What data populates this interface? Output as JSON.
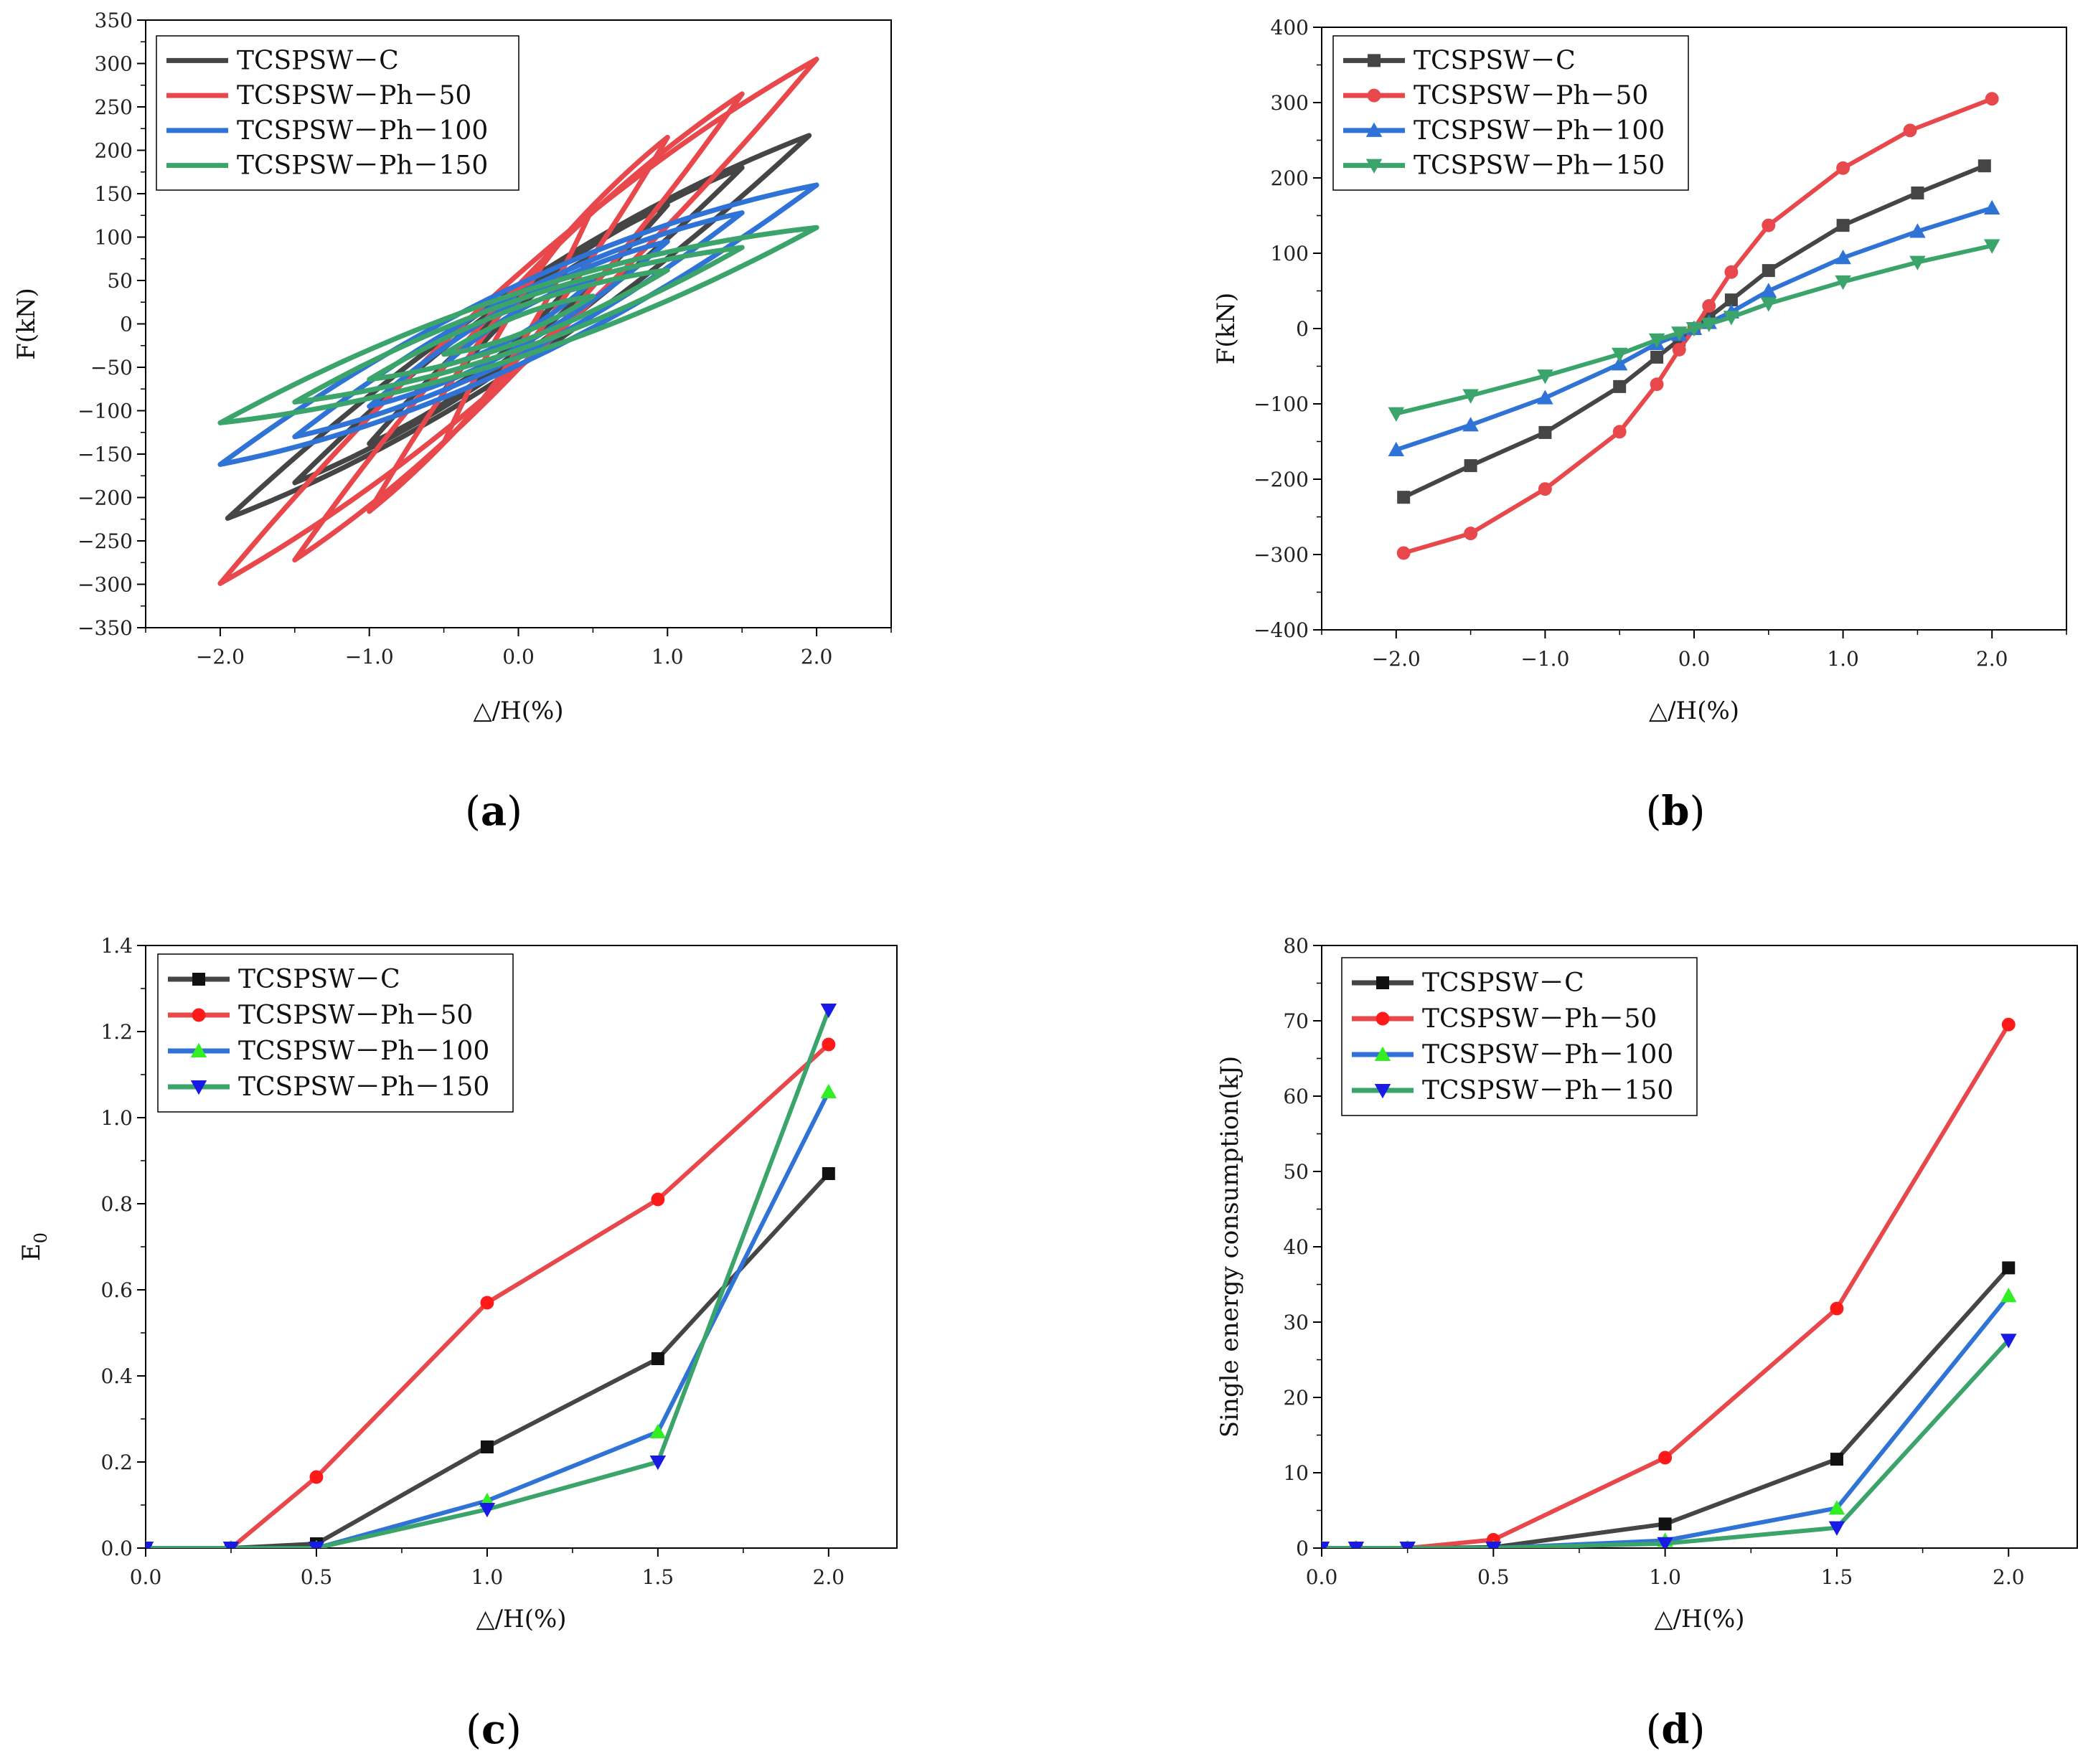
{
  "colors": {
    "C": "#454545",
    "Ph50": "#e8484b",
    "Ph100": "#2f73d6",
    "Ph150": "#3aa46a",
    "marker_green": "#33ee22",
    "marker_blue": "#1a1ae6",
    "marker_red": "#ff1a1a",
    "marker_black": "#111111"
  },
  "chart_data": [
    {
      "id": "a",
      "type": "line",
      "panel_label": "a",
      "xlabel": "△/H(%)",
      "ylabel": "F(kN)",
      "xlim": [
        -2.5,
        2.5
      ],
      "ylim": [
        -350,
        350
      ],
      "xticks": [
        -2.0,
        -1.0,
        0.0,
        1.0,
        2.0
      ],
      "xtick_labels": [
        "−2.0",
        "−1.0",
        "0.0",
        "1.0",
        "2.0"
      ],
      "yticks": [
        -350,
        -300,
        -250,
        -200,
        -150,
        -100,
        -50,
        0,
        50,
        100,
        150,
        200,
        250,
        300,
        350
      ],
      "ytick_labels": [
        "−350",
        "−300",
        "−250",
        "−200",
        "−150",
        "−100",
        "−50",
        "0",
        "50",
        "100",
        "150",
        "200",
        "250",
        "300",
        "350"
      ],
      "legend": "top-left",
      "series": [
        {
          "name": "TCSPSW－C",
          "color_key": "C",
          "marker": "none",
          "loops": [
            {
              "amp": 0.5,
              "fpos": 78,
              "fneg": -77,
              "pinch": 0.35
            },
            {
              "amp": 1.0,
              "fpos": 137,
              "fneg": -138,
              "pinch": 0.4
            },
            {
              "amp": 1.5,
              "fpos": 180,
              "fneg": -183,
              "pinch": 0.42
            },
            {
              "amp": 1.95,
              "fpos": 217,
              "fneg": -224,
              "pinch": 0.42
            }
          ]
        },
        {
          "name": "TCSPSW－Ph－50",
          "color_key": "Ph50",
          "marker": "none",
          "loops": [
            {
              "amp": 0.5,
              "fpos": 135,
              "fneg": -137,
              "pinch": 0.45
            },
            {
              "amp": 1.0,
              "fpos": 215,
              "fneg": -216,
              "pinch": 0.5
            },
            {
              "amp": 1.5,
              "fpos": 265,
              "fneg": -272,
              "pinch": 0.5
            },
            {
              "amp": 2.0,
              "fpos": 305,
              "fneg": -299,
              "pinch": 0.5
            }
          ]
        },
        {
          "name": "TCSPSW－Ph－100",
          "color_key": "Ph100",
          "marker": "none",
          "loops": [
            {
              "amp": 0.5,
              "fpos": 50,
              "fneg": -48,
              "pinch": 0.2
            },
            {
              "amp": 1.0,
              "fpos": 95,
              "fneg": -95,
              "pinch": 0.22
            },
            {
              "amp": 1.5,
              "fpos": 128,
              "fneg": -130,
              "pinch": 0.22
            },
            {
              "amp": 2.0,
              "fpos": 160,
              "fneg": -162,
              "pinch": 0.2
            }
          ]
        },
        {
          "name": "TCSPSW－Ph－150",
          "color_key": "Ph150",
          "marker": "none",
          "loops": [
            {
              "amp": 0.5,
              "fpos": 32,
              "fneg": -35,
              "pinch": 0.1
            },
            {
              "amp": 1.0,
              "fpos": 62,
              "fneg": -64,
              "pinch": 0.1
            },
            {
              "amp": 1.5,
              "fpos": 88,
              "fneg": -90,
              "pinch": 0.1
            },
            {
              "amp": 2.0,
              "fpos": 111,
              "fneg": -114,
              "pinch": 0.08
            }
          ]
        }
      ]
    },
    {
      "id": "b",
      "type": "line",
      "panel_label": "b",
      "xlabel": "△/H(%)",
      "ylabel": "F(kN)",
      "xlim": [
        -2.5,
        2.5
      ],
      "ylim": [
        -400,
        400
      ],
      "xticks": [
        -2.0,
        -1.0,
        0.0,
        1.0,
        2.0
      ],
      "xtick_labels": [
        "−2.0",
        "−1.0",
        "0.0",
        "1.0",
        "2.0"
      ],
      "yticks": [
        -400,
        -300,
        -200,
        -100,
        0,
        100,
        200,
        300,
        400
      ],
      "ytick_labels": [
        "−400",
        "−300",
        "−200",
        "−100",
        "0",
        "100",
        "200",
        "300",
        "400"
      ],
      "legend": "top-left",
      "series": [
        {
          "name": "TCSPSW－C",
          "color_key": "C",
          "marker": "square",
          "marker_color_key": "C",
          "x": [
            -1.95,
            -1.5,
            -1.0,
            -0.5,
            -0.25,
            -0.1,
            0,
            0.1,
            0.25,
            0.5,
            1.0,
            1.5,
            1.95
          ],
          "y": [
            -224,
            -182,
            -138,
            -77,
            -38,
            -15,
            0,
            15,
            38,
            77,
            137,
            180,
            216
          ]
        },
        {
          "name": "TCSPSW－Ph－50",
          "color_key": "Ph50",
          "marker": "circle",
          "marker_color_key": "Ph50",
          "x": [
            -1.95,
            -1.5,
            -1.0,
            -0.5,
            -0.25,
            -0.1,
            0,
            0.1,
            0.25,
            0.5,
            1.0,
            1.45,
            2.0
          ],
          "y": [
            -298,
            -272,
            -213,
            -137,
            -74,
            -28,
            0,
            30,
            75,
            137,
            213,
            263,
            305
          ]
        },
        {
          "name": "TCSPSW－Ph－100",
          "color_key": "Ph100",
          "marker": "triangle-up",
          "marker_color_key": "Ph100",
          "x": [
            -2.0,
            -1.5,
            -1.0,
            -0.5,
            -0.25,
            -0.1,
            0,
            0.1,
            0.25,
            0.5,
            1.0,
            1.5,
            2.0
          ],
          "y": [
            -161,
            -128,
            -92,
            -47,
            -20,
            -8,
            0,
            8,
            22,
            50,
            94,
            129,
            160
          ]
        },
        {
          "name": "TCSPSW－Ph－150",
          "color_key": "Ph150",
          "marker": "triangle-down",
          "marker_color_key": "Ph150",
          "x": [
            -2.0,
            -1.5,
            -1.0,
            -0.5,
            -0.25,
            -0.1,
            0,
            0.1,
            0.25,
            0.5,
            1.0,
            1.5,
            2.0
          ],
          "y": [
            -113,
            -89,
            -63,
            -34,
            -15,
            -6,
            0,
            6,
            15,
            33,
            62,
            88,
            110
          ]
        }
      ]
    },
    {
      "id": "c",
      "type": "line",
      "panel_label": "c",
      "xlabel": "△/H(%)",
      "ylabel": "E0",
      "ylabel_main": "E",
      "ylabel_sub": "0",
      "xlim": [
        0,
        2.2
      ],
      "ylim": [
        0,
        1.4
      ],
      "xticks": [
        0,
        0.5,
        1.0,
        1.5,
        2.0
      ],
      "xtick_labels": [
        "0.0",
        "0.5",
        "1.0",
        "1.5",
        "2.0"
      ],
      "yticks": [
        0,
        0.2,
        0.4,
        0.6,
        0.8,
        1.0,
        1.2,
        1.4
      ],
      "ytick_labels": [
        "0.0",
        "0.2",
        "0.4",
        "0.6",
        "0.8",
        "1.0",
        "1.2",
        "1.4"
      ],
      "legend": "top-left",
      "series": [
        {
          "name": "TCSPSW－C",
          "color_key": "C",
          "marker": "square",
          "marker_color_key": "marker_black",
          "x": [
            0,
            0.25,
            0.5,
            1.0,
            1.5,
            2.0
          ],
          "y": [
            0,
            0,
            0.01,
            0.235,
            0.44,
            0.87
          ]
        },
        {
          "name": "TCSPSW－Ph－50",
          "color_key": "Ph50",
          "marker": "circle",
          "marker_color_key": "marker_red",
          "x": [
            0,
            0.25,
            0.5,
            1.0,
            1.5,
            2.0
          ],
          "y": [
            0,
            0,
            0.165,
            0.57,
            0.81,
            1.17
          ]
        },
        {
          "name": "TCSPSW－Ph－100",
          "color_key": "Ph100",
          "marker": "triangle-up",
          "marker_color_key": "marker_green",
          "x": [
            0,
            0.25,
            0.5,
            1.0,
            1.5,
            2.0
          ],
          "y": [
            0,
            0,
            0,
            0.11,
            0.27,
            1.06
          ]
        },
        {
          "name": "TCSPSW－Ph－150",
          "color_key": "Ph150",
          "marker": "triangle-down",
          "marker_color_key": "marker_blue",
          "x": [
            0,
            0.25,
            0.5,
            1.0,
            1.5,
            2.0
          ],
          "y": [
            0,
            0,
            0,
            0.09,
            0.2,
            1.25
          ]
        }
      ]
    },
    {
      "id": "d",
      "type": "line",
      "panel_label": "d",
      "xlabel": "△/H(%)",
      "ylabel": "Single  energy consumption(kJ)",
      "xlim": [
        0,
        2.2
      ],
      "ylim": [
        0,
        80
      ],
      "xticks": [
        0,
        0.5,
        1.0,
        1.5,
        2.0
      ],
      "xtick_labels": [
        "0.0",
        "0.5",
        "1.0",
        "1.5",
        "2.0"
      ],
      "yticks": [
        0,
        10,
        20,
        30,
        40,
        50,
        60,
        70,
        80
      ],
      "ytick_labels": [
        "0",
        "10",
        "20",
        "30",
        "40",
        "50",
        "60",
        "70",
        "80"
      ],
      "legend": "top-left",
      "series": [
        {
          "name": "TCSPSW－C",
          "color_key": "C",
          "marker": "square",
          "marker_color_key": "marker_black",
          "x": [
            0,
            0.1,
            0.25,
            0.5,
            1.0,
            1.5,
            2.0
          ],
          "y": [
            0,
            0,
            0,
            0.1,
            3.2,
            11.8,
            37.2
          ]
        },
        {
          "name": "TCSPSW－Ph－50",
          "color_key": "Ph50",
          "marker": "circle",
          "marker_color_key": "marker_red",
          "x": [
            0,
            0.1,
            0.25,
            0.5,
            1.0,
            1.5,
            2.0
          ],
          "y": [
            0,
            0,
            0,
            1.1,
            12.0,
            31.8,
            69.5
          ]
        },
        {
          "name": "TCSPSW－Ph－100",
          "color_key": "Ph100",
          "marker": "triangle-up",
          "marker_color_key": "marker_green",
          "x": [
            0,
            0.1,
            0.25,
            0.5,
            1.0,
            1.5,
            2.0
          ],
          "y": [
            0,
            0,
            0,
            0,
            1.0,
            5.3,
            33.5
          ]
        },
        {
          "name": "TCSPSW－Ph－150",
          "color_key": "Ph150",
          "marker": "triangle-down",
          "marker_color_key": "marker_blue",
          "x": [
            0,
            0.1,
            0.25,
            0.5,
            1.0,
            1.5,
            2.0
          ],
          "y": [
            0,
            0,
            0,
            0,
            0.6,
            2.7,
            27.6
          ]
        }
      ]
    }
  ]
}
